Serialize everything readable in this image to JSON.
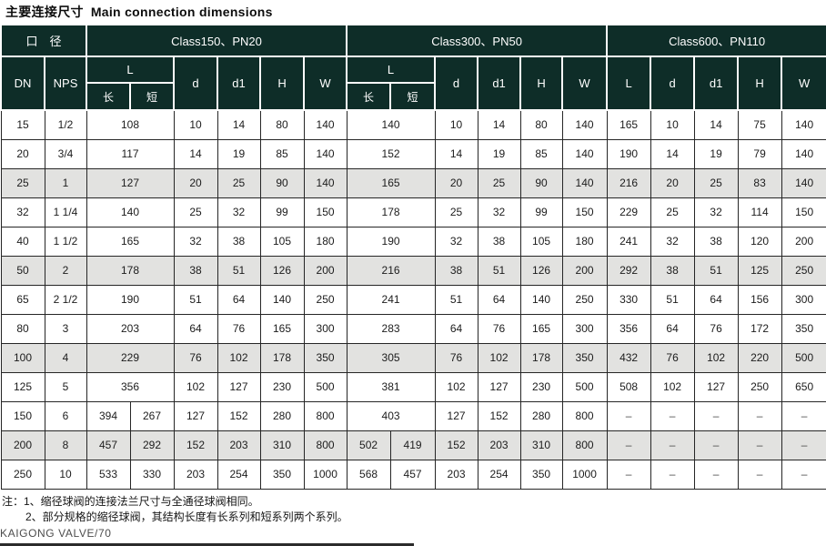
{
  "page": {
    "title_zh": "主要连接尺寸",
    "title_en": "Main connection dimensions",
    "note_line1": "注：1、缩径球阀的连接法兰尺寸与全通径球阀相同。",
    "note_line2": "2、部分规格的缩径球阀，其结构长度有长系列和短系列两个系列。",
    "footer_brand": "KAIGONG VALVE/70"
  },
  "colors": {
    "header_bg": "#0e2d28",
    "header_text": "#ffffff",
    "shaded_row_bg": "#e2e2e0",
    "body_border": "#262626"
  },
  "table": {
    "caliber_label": "口　径",
    "dn_label": "DN",
    "nps_label": "NPS",
    "l_label": "L",
    "long_label": "长",
    "short_label": "短",
    "d_label": "d",
    "d1_label": "d1",
    "h_label": "H",
    "w_label": "W",
    "groups": [
      {
        "label": "Class150、PN20"
      },
      {
        "label": "Class300、PN50"
      },
      {
        "label": "Class600、PN110"
      }
    ],
    "rows": [
      {
        "dn": "15",
        "nps": "1/2",
        "c150_l": [
          "108"
        ],
        "c150": [
          "10",
          "14",
          "80",
          "140"
        ],
        "c300_l": [
          "140"
        ],
        "c300": [
          "10",
          "14",
          "80",
          "140"
        ],
        "c600": [
          "165",
          "10",
          "14",
          "75",
          "140"
        ],
        "shaded": false
      },
      {
        "dn": "20",
        "nps": "3/4",
        "c150_l": [
          "117"
        ],
        "c150": [
          "14",
          "19",
          "85",
          "140"
        ],
        "c300_l": [
          "152"
        ],
        "c300": [
          "14",
          "19",
          "85",
          "140"
        ],
        "c600": [
          "190",
          "14",
          "19",
          "79",
          "140"
        ],
        "shaded": false
      },
      {
        "dn": "25",
        "nps": "1",
        "c150_l": [
          "127"
        ],
        "c150": [
          "20",
          "25",
          "90",
          "140"
        ],
        "c300_l": [
          "165"
        ],
        "c300": [
          "20",
          "25",
          "90",
          "140"
        ],
        "c600": [
          "216",
          "20",
          "25",
          "83",
          "140"
        ],
        "shaded": true
      },
      {
        "dn": "32",
        "nps": "1 1/4",
        "c150_l": [
          "140"
        ],
        "c150": [
          "25",
          "32",
          "99",
          "150"
        ],
        "c300_l": [
          "178"
        ],
        "c300": [
          "25",
          "32",
          "99",
          "150"
        ],
        "c600": [
          "229",
          "25",
          "32",
          "114",
          "150"
        ],
        "shaded": false
      },
      {
        "dn": "40",
        "nps": "1 1/2",
        "c150_l": [
          "165"
        ],
        "c150": [
          "32",
          "38",
          "105",
          "180"
        ],
        "c300_l": [
          "190"
        ],
        "c300": [
          "32",
          "38",
          "105",
          "180"
        ],
        "c600": [
          "241",
          "32",
          "38",
          "120",
          "200"
        ],
        "shaded": false
      },
      {
        "dn": "50",
        "nps": "2",
        "c150_l": [
          "178"
        ],
        "c150": [
          "38",
          "51",
          "126",
          "200"
        ],
        "c300_l": [
          "216"
        ],
        "c300": [
          "38",
          "51",
          "126",
          "200"
        ],
        "c600": [
          "292",
          "38",
          "51",
          "125",
          "250"
        ],
        "shaded": true
      },
      {
        "dn": "65",
        "nps": "2 1/2",
        "c150_l": [
          "190"
        ],
        "c150": [
          "51",
          "64",
          "140",
          "250"
        ],
        "c300_l": [
          "241"
        ],
        "c300": [
          "51",
          "64",
          "140",
          "250"
        ],
        "c600": [
          "330",
          "51",
          "64",
          "156",
          "300"
        ],
        "shaded": false
      },
      {
        "dn": "80",
        "nps": "3",
        "c150_l": [
          "203"
        ],
        "c150": [
          "64",
          "76",
          "165",
          "300"
        ],
        "c300_l": [
          "283"
        ],
        "c300": [
          "64",
          "76",
          "165",
          "300"
        ],
        "c600": [
          "356",
          "64",
          "76",
          "172",
          "350"
        ],
        "shaded": false
      },
      {
        "dn": "100",
        "nps": "4",
        "c150_l": [
          "229"
        ],
        "c150": [
          "76",
          "102",
          "178",
          "350"
        ],
        "c300_l": [
          "305"
        ],
        "c300": [
          "76",
          "102",
          "178",
          "350"
        ],
        "c600": [
          "432",
          "76",
          "102",
          "220",
          "500"
        ],
        "shaded": true
      },
      {
        "dn": "125",
        "nps": "5",
        "c150_l": [
          "356"
        ],
        "c150": [
          "102",
          "127",
          "230",
          "500"
        ],
        "c300_l": [
          "381"
        ],
        "c300": [
          "102",
          "127",
          "230",
          "500"
        ],
        "c600": [
          "508",
          "102",
          "127",
          "250",
          "650"
        ],
        "shaded": false
      },
      {
        "dn": "150",
        "nps": "6",
        "c150_l": [
          "394",
          "267"
        ],
        "c150": [
          "127",
          "152",
          "280",
          "800"
        ],
        "c300_l": [
          "403"
        ],
        "c300": [
          "127",
          "152",
          "280",
          "800"
        ],
        "c600": [
          "–",
          "–",
          "–",
          "–",
          "–"
        ],
        "shaded": false
      },
      {
        "dn": "200",
        "nps": "8",
        "c150_l": [
          "457",
          "292"
        ],
        "c150": [
          "152",
          "203",
          "310",
          "800"
        ],
        "c300_l": [
          "502",
          "419"
        ],
        "c300": [
          "152",
          "203",
          "310",
          "800"
        ],
        "c600": [
          "–",
          "–",
          "–",
          "–",
          "–"
        ],
        "shaded": true
      },
      {
        "dn": "250",
        "nps": "10",
        "c150_l": [
          "533",
          "330"
        ],
        "c150": [
          "203",
          "254",
          "350",
          "1000"
        ],
        "c300_l": [
          "568",
          "457"
        ],
        "c300": [
          "203",
          "254",
          "350",
          "1000"
        ],
        "c600": [
          "–",
          "–",
          "–",
          "–",
          "–"
        ],
        "shaded": false
      }
    ]
  }
}
